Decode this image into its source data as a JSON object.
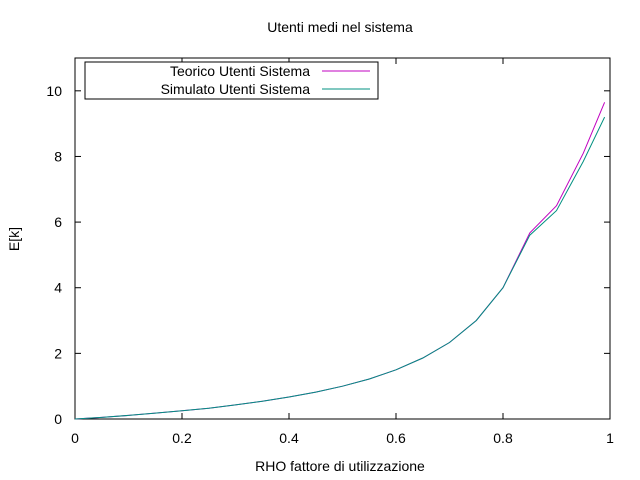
{
  "chart_data": {
    "type": "line",
    "title": "Utenti medi nel sistema",
    "xlabel": "RHO fattore di utilizzazione",
    "ylabel": "E[k]",
    "xlim": [
      0,
      1
    ],
    "ylim": [
      0,
      11
    ],
    "x_ticks": [
      "0",
      "0.2",
      "0.4",
      "0.6",
      "0.8",
      "1"
    ],
    "y_ticks": [
      "0",
      "2",
      "4",
      "6",
      "8",
      "10"
    ],
    "x_tick_values": [
      0,
      0.2,
      0.4,
      0.6,
      0.8,
      1
    ],
    "y_tick_values": [
      0,
      2,
      4,
      6,
      8,
      10
    ],
    "grid": false,
    "legend_position": "top-left",
    "series": [
      {
        "name": "Teorico Utenti Sistema",
        "color": "#c000c0",
        "x": [
          0,
          0.05,
          0.1,
          0.15,
          0.2,
          0.25,
          0.3,
          0.35,
          0.4,
          0.45,
          0.5,
          0.55,
          0.6,
          0.65,
          0.7,
          0.75,
          0.8,
          0.85,
          0.9,
          0.95,
          0.99
        ],
        "y": [
          0,
          0.05,
          0.11,
          0.18,
          0.25,
          0.33,
          0.43,
          0.54,
          0.67,
          0.82,
          1.0,
          1.22,
          1.5,
          1.86,
          2.33,
          3.0,
          4.0,
          5.67,
          6.5,
          8.1,
          9.65
        ]
      },
      {
        "name": "Simulato Utenti Sistema",
        "color": "#009080",
        "x": [
          0,
          0.05,
          0.1,
          0.15,
          0.2,
          0.25,
          0.3,
          0.35,
          0.4,
          0.45,
          0.5,
          0.55,
          0.6,
          0.65,
          0.7,
          0.75,
          0.8,
          0.85,
          0.9,
          0.95,
          0.99
        ],
        "y": [
          0,
          0.05,
          0.11,
          0.18,
          0.25,
          0.33,
          0.43,
          0.54,
          0.67,
          0.82,
          1.0,
          1.22,
          1.5,
          1.86,
          2.33,
          3.0,
          4.0,
          5.6,
          6.35,
          7.85,
          9.2
        ]
      }
    ]
  }
}
